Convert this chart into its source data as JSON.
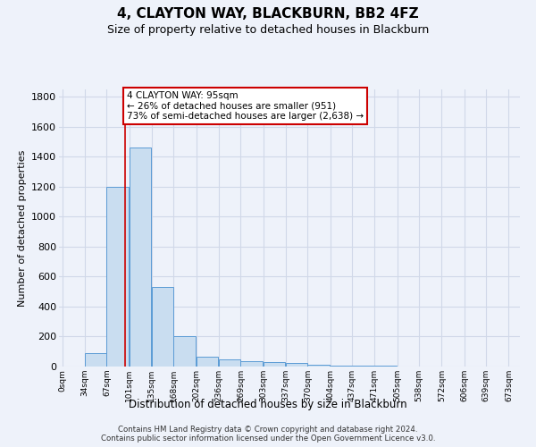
{
  "title": "4, CLAYTON WAY, BLACKBURN, BB2 4FZ",
  "subtitle": "Size of property relative to detached houses in Blackburn",
  "xlabel": "Distribution of detached houses by size in Blackburn",
  "ylabel": "Number of detached properties",
  "footer_line1": "Contains HM Land Registry data © Crown copyright and database right 2024.",
  "footer_line2": "Contains public sector information licensed under the Open Government Licence v3.0.",
  "annotation_title": "4 CLAYTON WAY: 95sqm",
  "annotation_line2": "← 26% of detached houses are smaller (951)",
  "annotation_line3": "73% of semi-detached houses are larger (2,638) →",
  "bar_color": "#c9ddf0",
  "bar_edge_color": "#5b9bd5",
  "vline_color": "#cc0000",
  "annotation_box_edge_color": "#cc0000",
  "grid_color": "#d0d8e8",
  "background_color": "#eef2fa",
  "bar_left_edges": [
    0,
    34,
    67,
    101,
    135,
    168,
    202,
    236,
    269,
    303,
    337,
    370,
    404,
    437,
    471,
    505,
    538,
    572,
    606,
    639
  ],
  "bar_heights": [
    0,
    90,
    1200,
    1460,
    530,
    205,
    65,
    47,
    38,
    30,
    25,
    10,
    8,
    5,
    3,
    2,
    1,
    1,
    0,
    0
  ],
  "bin_width": 33,
  "vline_x": 95,
  "ylim": [
    0,
    1850
  ],
  "yticks": [
    0,
    200,
    400,
    600,
    800,
    1000,
    1200,
    1400,
    1600,
    1800
  ],
  "xtick_labels": [
    "0sqm",
    "34sqm",
    "67sqm",
    "101sqm",
    "135sqm",
    "168sqm",
    "202sqm",
    "236sqm",
    "269sqm",
    "303sqm",
    "337sqm",
    "370sqm",
    "404sqm",
    "437sqm",
    "471sqm",
    "505sqm",
    "538sqm",
    "572sqm",
    "606sqm",
    "639sqm",
    "673sqm"
  ],
  "xtick_positions": [
    0,
    34,
    67,
    101,
    135,
    168,
    202,
    236,
    269,
    303,
    337,
    370,
    404,
    437,
    471,
    505,
    538,
    572,
    606,
    639,
    673
  ],
  "xlim": [
    -5,
    690
  ]
}
